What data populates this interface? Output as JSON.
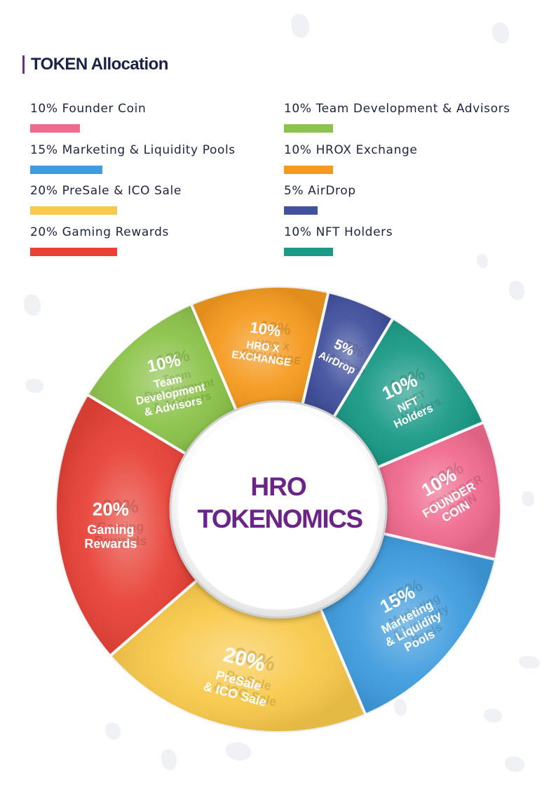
{
  "header": {
    "title": "TOKEN Allocation"
  },
  "legend": [
    {
      "label": "10% Founder Coin",
      "color": "#f06a8e",
      "value": 10
    },
    {
      "label": "10% Team Development & Advisors",
      "color": "#8cc34a",
      "value": 10
    },
    {
      "label": "15% Marketing & Liquidity Pools",
      "color": "#3f9cde",
      "value": 15
    },
    {
      "label": "10% HROX Exchange",
      "color": "#f59a1f",
      "value": 10
    },
    {
      "label": "20% PreSale & ICO Sale",
      "color": "#f8c94a",
      "value": 20
    },
    {
      "label": "5% AirDrop",
      "color": "#41519e",
      "value": 5
    },
    {
      "label": "20% Gaming Rewards",
      "color": "#e84237",
      "value": 20
    },
    {
      "label": "10% NFT Holders",
      "color": "#1a9a87",
      "value": 10
    }
  ],
  "center": {
    "line1": "HRO",
    "line2": "TOKENOMICS"
  },
  "chart_data": {
    "type": "pie",
    "title": "HRO TOKENOMICS",
    "slices": [
      {
        "name": "FOUNDER COIN",
        "value": 10,
        "color": "#f06a8e",
        "label_lines": [
          "10%",
          "FOUNDER",
          "COIN"
        ]
      },
      {
        "name": "Marketing & Liquidity Pools",
        "value": 15,
        "color": "#3f9cde",
        "label_lines": [
          "15%",
          "Marketing",
          "& Liquidity",
          "Pools"
        ]
      },
      {
        "name": "PreSale & ICO Sale",
        "value": 20,
        "color": "#f8c94a",
        "label_lines": [
          "20%",
          "PreSale",
          "& ICO Sale"
        ]
      },
      {
        "name": "Gaming Rewards",
        "value": 20,
        "color": "#e84237",
        "label_lines": [
          "20%",
          "Gaming",
          "Rewards"
        ]
      },
      {
        "name": "Team Development & Advisors",
        "value": 10,
        "color": "#8cc34a",
        "label_lines": [
          "10%",
          "Team",
          "Development",
          "& Advisors"
        ]
      },
      {
        "name": "HRO X EXCHANGE",
        "value": 10,
        "color": "#f59a1f",
        "label_lines": [
          "10%",
          "HRO X",
          "EXCHANGE"
        ]
      },
      {
        "name": "AirDrop",
        "value": 5,
        "color": "#41519e",
        "label_lines": [
          "5%",
          "AirDrop"
        ]
      },
      {
        "name": "NFT Holders",
        "value": 10,
        "color": "#1a9a87",
        "label_lines": [
          "10%",
          "NFT",
          "Holders"
        ]
      }
    ]
  }
}
